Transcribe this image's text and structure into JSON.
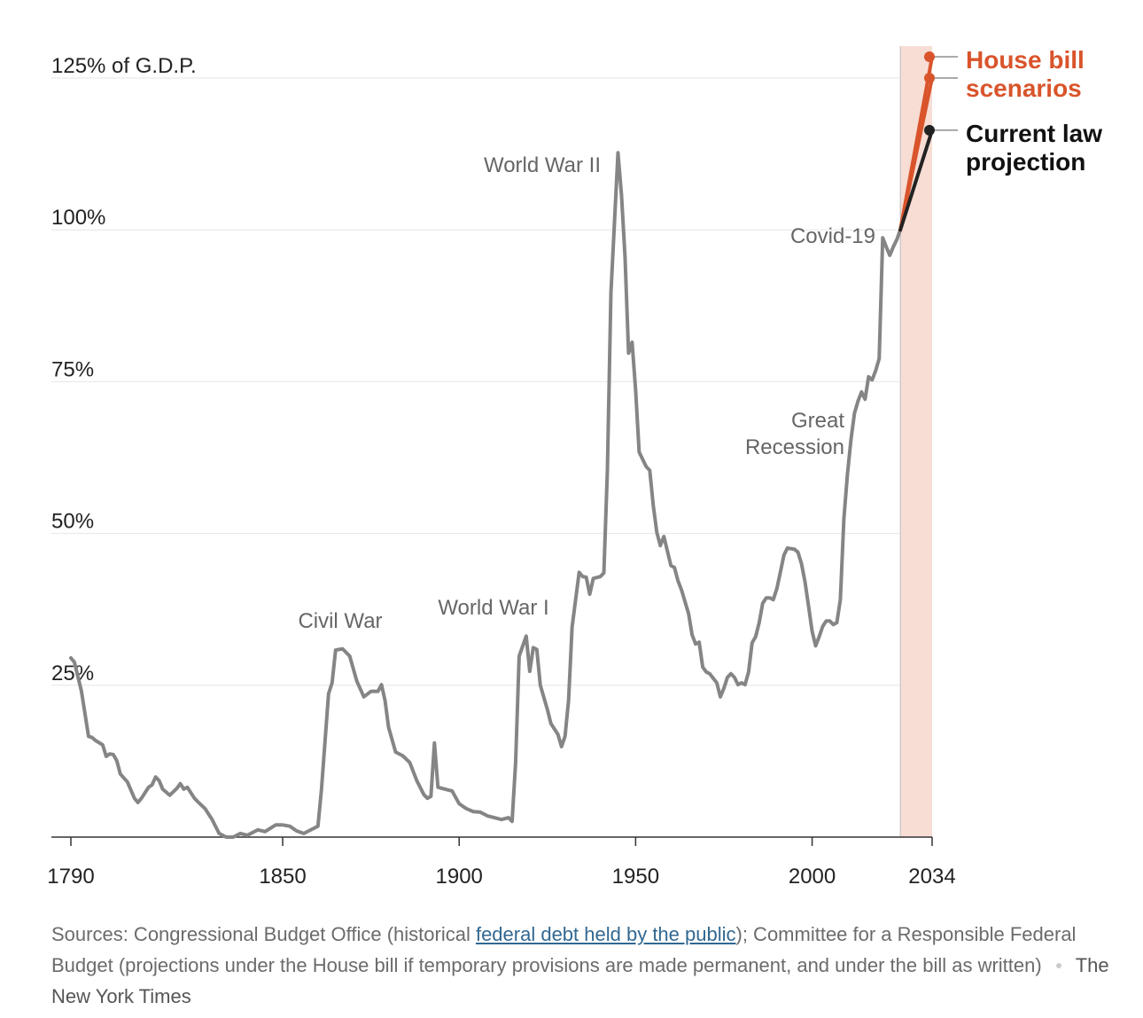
{
  "chart_data": {
    "type": "line",
    "xlim": [
      1790,
      2034
    ],
    "xticks": [
      1790,
      1850,
      1900,
      1950,
      2000,
      2034
    ],
    "ylim": [
      0,
      125
    ],
    "yticks": [
      {
        "value": 0,
        "label": ""
      },
      {
        "value": 25,
        "label": "25%"
      },
      {
        "value": 50,
        "label": "50%"
      },
      {
        "value": 75,
        "label": "75%"
      },
      {
        "value": 100,
        "label": "100%"
      },
      {
        "value": 125,
        "label": "125% of G.D.P."
      }
    ],
    "grid": true,
    "projection_band": {
      "x": [
        2025,
        2034
      ],
      "color": "#f7ddd4"
    },
    "series": [
      {
        "color": "#858585",
        "x": [
          1790,
          1791,
          1793,
          1795,
          1796,
          1797,
          1799,
          1800,
          1801,
          1802,
          1803,
          1804,
          1806,
          1808,
          1809,
          1810,
          1812,
          1813,
          1814,
          1815,
          1816,
          1818,
          1820,
          1821,
          1822,
          1823,
          1825,
          1826,
          1828,
          1830,
          1832,
          1834,
          1836,
          1838,
          1840,
          1843,
          1845,
          1848,
          1850,
          1852,
          1854,
          1856,
          1858,
          1860,
          1861,
          1863,
          1864,
          1865,
          1867,
          1869,
          1871,
          1873,
          1875,
          1877,
          1878,
          1879,
          1880,
          1882,
          1884,
          1886,
          1888,
          1890,
          1891,
          1892,
          1893,
          1894,
          1896,
          1898,
          1900,
          1902,
          1904,
          1906,
          1908,
          1910,
          1912,
          1914,
          1915,
          1916,
          1917,
          1919,
          1920,
          1921,
          1922,
          1923,
          1925,
          1926,
          1928,
          1929,
          1930,
          1931,
          1932,
          1934,
          1935,
          1936,
          1937,
          1938,
          1940,
          1941,
          1942,
          1943,
          1945,
          1946,
          1947,
          1948,
          1949,
          1950,
          1951,
          1953,
          1954,
          1955,
          1956,
          1957,
          1958,
          1960,
          1961,
          1962,
          1963,
          1965,
          1966,
          1967,
          1968,
          1969,
          1970,
          1971,
          1973,
          1974,
          1975,
          1976,
          1977,
          1978,
          1979,
          1980,
          1981,
          1982,
          1983,
          1984,
          1985,
          1986,
          1987,
          1988,
          1989,
          1990,
          1991,
          1992,
          1993,
          1995,
          1996,
          1997,
          1998,
          1999,
          2000,
          2001,
          2002,
          2003,
          2004,
          2005,
          2006,
          2007,
          2008,
          2009,
          2010,
          2011,
          2012,
          2013,
          2014,
          2015,
          2016,
          2017,
          2018,
          2019,
          2020,
          2021,
          2022,
          2023,
          2024,
          2025
        ],
        "values": [
          29.5,
          28.8,
          24,
          16.6,
          16.4,
          15.9,
          15.2,
          13.3,
          13.7,
          13.6,
          12.6,
          10.4,
          9.1,
          6.4,
          5.7,
          6.4,
          8.2,
          8.6,
          9.9,
          9.3,
          7.9,
          6.9,
          8,
          8.8,
          7.9,
          8.2,
          6.4,
          5.8,
          4.7,
          2.9,
          0.6,
          0,
          0,
          0.6,
          0.3,
          1.2,
          0.9,
          2,
          2,
          1.8,
          1,
          0.6,
          1.2,
          1.8,
          7.9,
          23.6,
          25.4,
          30.8,
          31,
          29.8,
          25.7,
          23.1,
          24,
          24,
          25.1,
          22.5,
          18.1,
          14,
          13.4,
          12.3,
          9.3,
          7,
          6.4,
          6.7,
          15.5,
          8.2,
          7.9,
          7.6,
          5.5,
          4.7,
          4.2,
          4.1,
          3.5,
          3.2,
          2.9,
          3.2,
          2.6,
          12.3,
          29.8,
          33.1,
          27.3,
          31.2,
          30.9,
          25,
          21,
          18.7,
          16.9,
          14.9,
          16.6,
          22.5,
          34.6,
          43.6,
          42.9,
          42.8,
          40,
          42.6,
          42.9,
          43.5,
          60.4,
          89.6,
          112.7,
          105.7,
          95.5,
          79.7,
          81.5,
          73.6,
          63.4,
          61,
          60.4,
          54.6,
          50.2,
          48,
          49.5,
          44.7,
          44.4,
          42.2,
          40.7,
          36.8,
          33.3,
          31.8,
          32.1,
          28,
          27.2,
          26.9,
          25.4,
          23.1,
          24.5,
          26.3,
          26.9,
          26.3,
          25.1,
          25.4,
          25.1,
          27.2,
          32,
          33,
          35.3,
          38.5,
          39.4,
          39.4,
          39.1,
          40.9,
          43.6,
          46.4,
          47.6,
          47.4,
          46.9,
          45,
          42,
          38,
          33.9,
          31.5,
          33,
          34.7,
          35.6,
          35.6,
          35,
          35.3,
          39.1,
          52.4,
          59.7,
          65.4,
          69.8,
          71.8,
          73.3,
          72.1,
          75.8,
          75.3,
          76.8,
          78.8,
          98.7,
          97.2,
          95.8,
          97.2,
          98.4,
          100
        ]
      },
      {
        "color": "#d9542b",
        "x": [
          2025,
          2034
        ],
        "values": [
          100,
          128.5
        ],
        "endpoint": true
      },
      {
        "color": "#d9542b",
        "x": [
          2025,
          2034
        ],
        "values": [
          100,
          125
        ],
        "endpoint": true
      },
      {
        "color": "#222222",
        "x": [
          2025,
          2034
        ],
        "values": [
          100,
          116.4
        ],
        "endpoint": true
      }
    ],
    "annotations": [
      [
        "World War II"
      ],
      [
        "Civil War"
      ],
      [
        "World War I"
      ],
      [
        "Covid-19"
      ],
      [
        "Great",
        "Recession"
      ]
    ],
    "labels": [
      {
        "lines": [
          "House bill",
          "scenarios"
        ],
        "color": "#d9542b"
      },
      {
        "lines": [
          "Current law",
          "projection"
        ],
        "color": "#111111"
      }
    ]
  },
  "source": {
    "before": "Sources: Congressional Budget Office (historical ",
    "link": "federal debt held by the public",
    "after": "); Committee for a Responsible Federal Budget (projections under the House bill if temporary provisions are made permanent, and under the bill as written)",
    "credit": "The New York Times"
  }
}
